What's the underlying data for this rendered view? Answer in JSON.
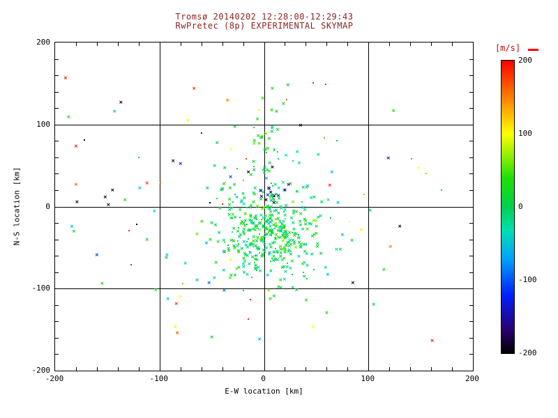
{
  "chart_data": {
    "type": "scatter",
    "title": "Tromsø 20140202 12:28:00-12:29:43",
    "subtitle": "RwPretec (8p) EXPERIMENTAL SKYMAP",
    "xlabel": "E-W location [km]",
    "ylabel": "N-S location [km]",
    "xlim": [
      -200,
      200
    ],
    "ylim": [
      -200,
      200
    ],
    "xticks": [
      -200,
      -100,
      0,
      100,
      200
    ],
    "yticks": [
      200,
      100,
      0,
      -100,
      -200
    ],
    "gridlines": [
      -100,
      0,
      100
    ],
    "minor_tick_step": 20,
    "colorbar": {
      "label": "[m/s]",
      "min": -200,
      "max": 200,
      "ticks": [
        200,
        100,
        0,
        -100,
        -200
      ],
      "stops": [
        {
          "t": 0.0,
          "c": "#000000"
        },
        {
          "t": 0.08,
          "c": "#2a0070"
        },
        {
          "t": 0.2,
          "c": "#0020ff"
        },
        {
          "t": 0.32,
          "c": "#00a0ff"
        },
        {
          "t": 0.42,
          "c": "#00e0b0"
        },
        {
          "t": 0.5,
          "c": "#00d050"
        },
        {
          "t": 0.6,
          "c": "#20e000"
        },
        {
          "t": 0.75,
          "c": "#ffff00"
        },
        {
          "t": 0.86,
          "c": "#ff8c00"
        },
        {
          "t": 1.0,
          "c": "#ff0000"
        }
      ]
    },
    "points": [
      [
        -190,
        156,
        190,
        "x"
      ],
      [
        -137,
        126,
        -195,
        "x"
      ],
      [
        -143,
        115,
        -55,
        "x"
      ],
      [
        -187,
        108,
        25,
        "x"
      ],
      [
        -180,
        73,
        190,
        "x"
      ],
      [
        -172,
        81,
        -200,
        "d"
      ],
      [
        -67,
        143,
        185,
        "x"
      ],
      [
        -73,
        104,
        100,
        "x"
      ],
      [
        -35,
        129,
        150,
        "x"
      ],
      [
        8,
        143,
        20,
        "x"
      ],
      [
        47,
        151,
        190,
        "d"
      ],
      [
        59,
        149,
        185,
        "d"
      ],
      [
        124,
        116,
        30,
        "x"
      ],
      [
        119,
        58,
        -150,
        "x"
      ],
      [
        141,
        58,
        20,
        "d"
      ],
      [
        148,
        47,
        100,
        "d"
      ],
      [
        -80,
        51,
        -120,
        "x"
      ],
      [
        -87,
        55,
        -190,
        "x"
      ],
      [
        -45,
        77,
        15,
        "x"
      ],
      [
        -32,
        70,
        100,
        "d"
      ],
      [
        -17,
        58,
        180,
        "d"
      ],
      [
        -15,
        41,
        -195,
        "x"
      ],
      [
        13,
        93,
        20,
        "x"
      ],
      [
        8,
        47,
        -190,
        "x"
      ],
      [
        28,
        56,
        10,
        "d"
      ],
      [
        65,
        41,
        -60,
        "x"
      ],
      [
        63,
        25,
        185,
        "x"
      ],
      [
        -180,
        26,
        160,
        "x"
      ],
      [
        -179,
        5,
        -195,
        "x"
      ],
      [
        -152,
        11,
        -190,
        "x"
      ],
      [
        -145,
        19,
        -195,
        "x"
      ],
      [
        -149,
        1,
        -190,
        "x"
      ],
      [
        -133,
        7,
        25,
        "x"
      ],
      [
        -119,
        22,
        -50,
        "x"
      ],
      [
        -112,
        28,
        180,
        "x"
      ],
      [
        -99,
        29,
        155,
        "d"
      ],
      [
        -52,
        5,
        -200,
        "d"
      ],
      [
        -32,
        35,
        -110,
        "x"
      ],
      [
        -40,
        3,
        185,
        "d"
      ],
      [
        -184,
        -25,
        -55,
        "x"
      ],
      [
        -182,
        -31,
        20,
        "x"
      ],
      [
        -129,
        -29,
        190,
        "d"
      ],
      [
        -122,
        -22,
        -195,
        "d"
      ],
      [
        -112,
        -41,
        15,
        "x"
      ],
      [
        -127,
        -71,
        185,
        "d"
      ],
      [
        -92,
        -113,
        -50,
        "x"
      ],
      [
        -84,
        -119,
        180,
        "x"
      ],
      [
        -80,
        -111,
        100,
        "x"
      ],
      [
        -13,
        -113,
        190,
        "d"
      ],
      [
        61,
        -84,
        -55,
        "x"
      ],
      [
        85,
        -94,
        -190,
        "x"
      ],
      [
        93,
        -29,
        105,
        "x"
      ],
      [
        121,
        -50,
        150,
        "x"
      ],
      [
        130,
        -25,
        -190,
        "x"
      ],
      [
        41,
        -58,
        -50,
        "x"
      ],
      [
        51,
        -50,
        10,
        "x"
      ],
      [
        47,
        -147,
        100,
        "x"
      ],
      [
        -83,
        -155,
        170,
        "x"
      ],
      [
        -85,
        -147,
        95,
        "x"
      ],
      [
        -15,
        -137,
        185,
        "d"
      ],
      [
        161,
        -164,
        190,
        "x"
      ],
      [
        75,
        -35,
        -60,
        "x"
      ],
      [
        82,
        -18,
        100,
        "d"
      ],
      [
        96,
        15,
        60,
        "d"
      ],
      [
        -60,
        90,
        -150,
        "d"
      ],
      [
        -5,
        118,
        90,
        "d"
      ],
      [
        22,
        130,
        160,
        "d"
      ],
      [
        -120,
        60,
        10,
        "d"
      ],
      [
        170,
        20,
        -50,
        "d"
      ],
      [
        155,
        40,
        60,
        "d"
      ],
      [
        -160,
        -60,
        -110,
        "x"
      ],
      [
        -155,
        -95,
        20,
        "x"
      ],
      [
        105,
        -120,
        -55,
        "x"
      ],
      [
        60,
        -130,
        30,
        "x"
      ],
      [
        -50,
        -160,
        10,
        "x"
      ],
      [
        35,
        98,
        -190,
        "x"
      ],
      [
        52,
        62,
        -20,
        "x"
      ],
      [
        -28,
        96,
        15,
        "x"
      ],
      [
        12,
        115,
        25,
        "x"
      ],
      [
        70,
        80,
        15,
        "d"
      ]
    ],
    "clusters": [
      {
        "cx": 3,
        "cy": -36,
        "sx": 23,
        "sy": 29,
        "n": 380,
        "v_mean": 8,
        "v_sd": 26,
        "seed": 42
      },
      {
        "cx": 0,
        "cy": -30,
        "sx": 55,
        "sy": 50,
        "n": 60,
        "v_mean": 5,
        "v_sd": 40,
        "seed": 99
      },
      {
        "cx": 6,
        "cy": 55,
        "sx": 10,
        "sy": 36,
        "n": 48,
        "v_mean": 12,
        "v_sd": 30,
        "seed": 7
      },
      {
        "cx": 7,
        "cy": 14,
        "sx": 7,
        "sy": 9,
        "n": 14,
        "v_mean": -160,
        "v_sd": 35,
        "seed": 13
      }
    ]
  },
  "colors": {
    "background": "#ffffff",
    "axis": "#000000",
    "title": "#8b2323",
    "colorbar_label": "#cc0000"
  }
}
